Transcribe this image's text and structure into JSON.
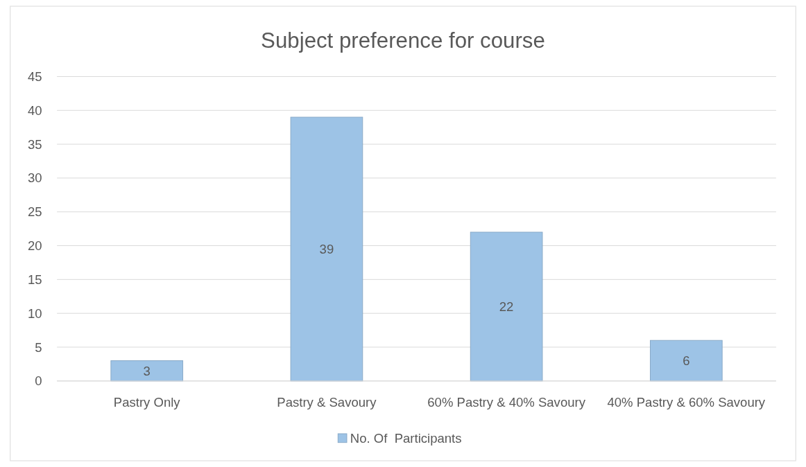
{
  "chart_data": {
    "type": "bar",
    "title": "Subject preference for course",
    "categories": [
      "Pastry Only",
      "Pastry & Savoury",
      "60% Pastry & 40% Savoury",
      "40% Pastry & 60% Savoury"
    ],
    "series": [
      {
        "name": "No. Of  Participants",
        "color": "#9dc3e6",
        "values": [
          3,
          39,
          22,
          6
        ]
      }
    ],
    "ylim": [
      0,
      45
    ],
    "yticks": [
      0,
      5,
      10,
      15,
      20,
      25,
      30,
      35,
      40,
      45
    ],
    "grid": "y",
    "legend": "bottom",
    "data_labels": true
  }
}
